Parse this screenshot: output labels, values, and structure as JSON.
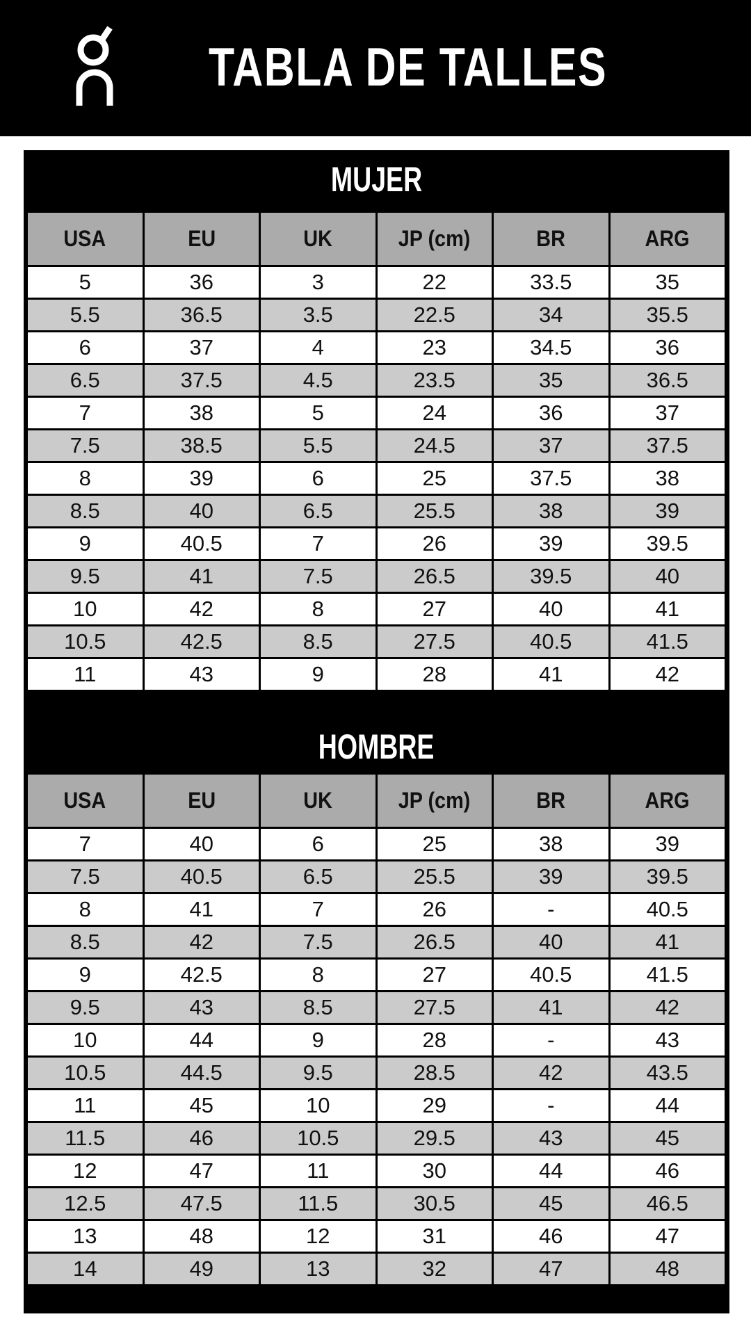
{
  "header": {
    "title": "TABLA DE TALLES",
    "logo": "On"
  },
  "columns": [
    "USA",
    "EU",
    "UK",
    "JP (cm)",
    "BR",
    "ARG"
  ],
  "mujer": {
    "title": "MUJER",
    "rows": [
      [
        "5",
        "36",
        "3",
        "22",
        "33.5",
        "35"
      ],
      [
        "5.5",
        "36.5",
        "3.5",
        "22.5",
        "34",
        "35.5"
      ],
      [
        "6",
        "37",
        "4",
        "23",
        "34.5",
        "36"
      ],
      [
        "6.5",
        "37.5",
        "4.5",
        "23.5",
        "35",
        "36.5"
      ],
      [
        "7",
        "38",
        "5",
        "24",
        "36",
        "37"
      ],
      [
        "7.5",
        "38.5",
        "5.5",
        "24.5",
        "37",
        "37.5"
      ],
      [
        "8",
        "39",
        "6",
        "25",
        "37.5",
        "38"
      ],
      [
        "8.5",
        "40",
        "6.5",
        "25.5",
        "38",
        "39"
      ],
      [
        "9",
        "40.5",
        "7",
        "26",
        "39",
        "39.5"
      ],
      [
        "9.5",
        "41",
        "7.5",
        "26.5",
        "39.5",
        "40"
      ],
      [
        "10",
        "42",
        "8",
        "27",
        "40",
        "41"
      ],
      [
        "10.5",
        "42.5",
        "8.5",
        "27.5",
        "40.5",
        "41.5"
      ],
      [
        "11",
        "43",
        "9",
        "28",
        "41",
        "42"
      ]
    ]
  },
  "hombre": {
    "title": "HOMBRE",
    "rows": [
      [
        "7",
        "40",
        "6",
        "25",
        "38",
        "39"
      ],
      [
        "7.5",
        "40.5",
        "6.5",
        "25.5",
        "39",
        "39.5"
      ],
      [
        "8",
        "41",
        "7",
        "26",
        "-",
        "40.5"
      ],
      [
        "8.5",
        "42",
        "7.5",
        "26.5",
        "40",
        "41"
      ],
      [
        "9",
        "42.5",
        "8",
        "27",
        "40.5",
        "41.5"
      ],
      [
        "9.5",
        "43",
        "8.5",
        "27.5",
        "41",
        "42"
      ],
      [
        "10",
        "44",
        "9",
        "28",
        "-",
        "43"
      ],
      [
        "10.5",
        "44.5",
        "9.5",
        "28.5",
        "42",
        "43.5"
      ],
      [
        "11",
        "45",
        "10",
        "29",
        "-",
        "44"
      ],
      [
        "11.5",
        "46",
        "10.5",
        "29.5",
        "43",
        "45"
      ],
      [
        "12",
        "47",
        "11",
        "30",
        "44",
        "46"
      ],
      [
        "12.5",
        "47.5",
        "11.5",
        "30.5",
        "45",
        "46.5"
      ],
      [
        "13",
        "48",
        "12",
        "31",
        "46",
        "47"
      ],
      [
        "14",
        "49",
        "13",
        "32",
        "47",
        "48"
      ]
    ]
  },
  "colors": {
    "band": "#000000",
    "header_cell": "#ababab",
    "stripe": "#cbcbcb",
    "row": "#ffffff"
  }
}
